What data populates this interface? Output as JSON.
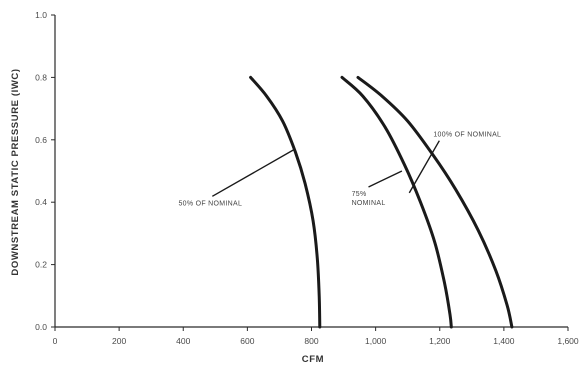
{
  "chart_data": {
    "type": "line",
    "title": "",
    "xlabel": "CFM",
    "ylabel": "DOWNSTREAM STATIC PRESSURE (IWC)",
    "xlim": [
      0,
      1600
    ],
    "ylim": [
      0,
      1.0
    ],
    "x_ticks": [
      "0",
      "200",
      "400",
      "600",
      "800",
      "1,000",
      "1,200",
      "1,400",
      "1,600"
    ],
    "y_ticks": [
      "0.0",
      "0.2",
      "0.4",
      "0.6",
      "0.8",
      "1.0"
    ],
    "grid": false,
    "legend": "none",
    "line_color": "#1a1a1a",
    "series": [
      {
        "name": "50% OF NOMINAL",
        "points": [
          [
            610,
            0.8
          ],
          [
            660,
            0.74
          ],
          [
            710,
            0.66
          ],
          [
            750,
            0.56
          ],
          [
            780,
            0.46
          ],
          [
            805,
            0.34
          ],
          [
            818,
            0.22
          ],
          [
            824,
            0.1
          ],
          [
            826,
            0.0
          ]
        ]
      },
      {
        "name": "75% NOMINAL",
        "points": [
          [
            895,
            0.8
          ],
          [
            960,
            0.74
          ],
          [
            1030,
            0.64
          ],
          [
            1090,
            0.52
          ],
          [
            1140,
            0.4
          ],
          [
            1185,
            0.27
          ],
          [
            1215,
            0.14
          ],
          [
            1232,
            0.04
          ],
          [
            1236,
            0.0
          ]
        ]
      },
      {
        "name": "100% OF NOMINAL",
        "points": [
          [
            945,
            0.8
          ],
          [
            1020,
            0.74
          ],
          [
            1100,
            0.66
          ],
          [
            1180,
            0.55
          ],
          [
            1250,
            0.44
          ],
          [
            1320,
            0.31
          ],
          [
            1375,
            0.18
          ],
          [
            1410,
            0.07
          ],
          [
            1425,
            0.0
          ]
        ]
      }
    ],
    "annotations": [
      {
        "lines": [
          "50% OF NOMINAL"
        ],
        "x": 385,
        "y": 0.39,
        "target": [
          748,
          0.57
        ]
      },
      {
        "lines": [
          "75%",
          "NOMINAL"
        ],
        "x": 925,
        "y": 0.42,
        "target": [
          1082,
          0.5
        ]
      },
      {
        "lines": [
          "100% OF NOMINAL"
        ],
        "x": 1180,
        "y": 0.61,
        "target": [
          1105,
          0.43
        ]
      }
    ]
  }
}
